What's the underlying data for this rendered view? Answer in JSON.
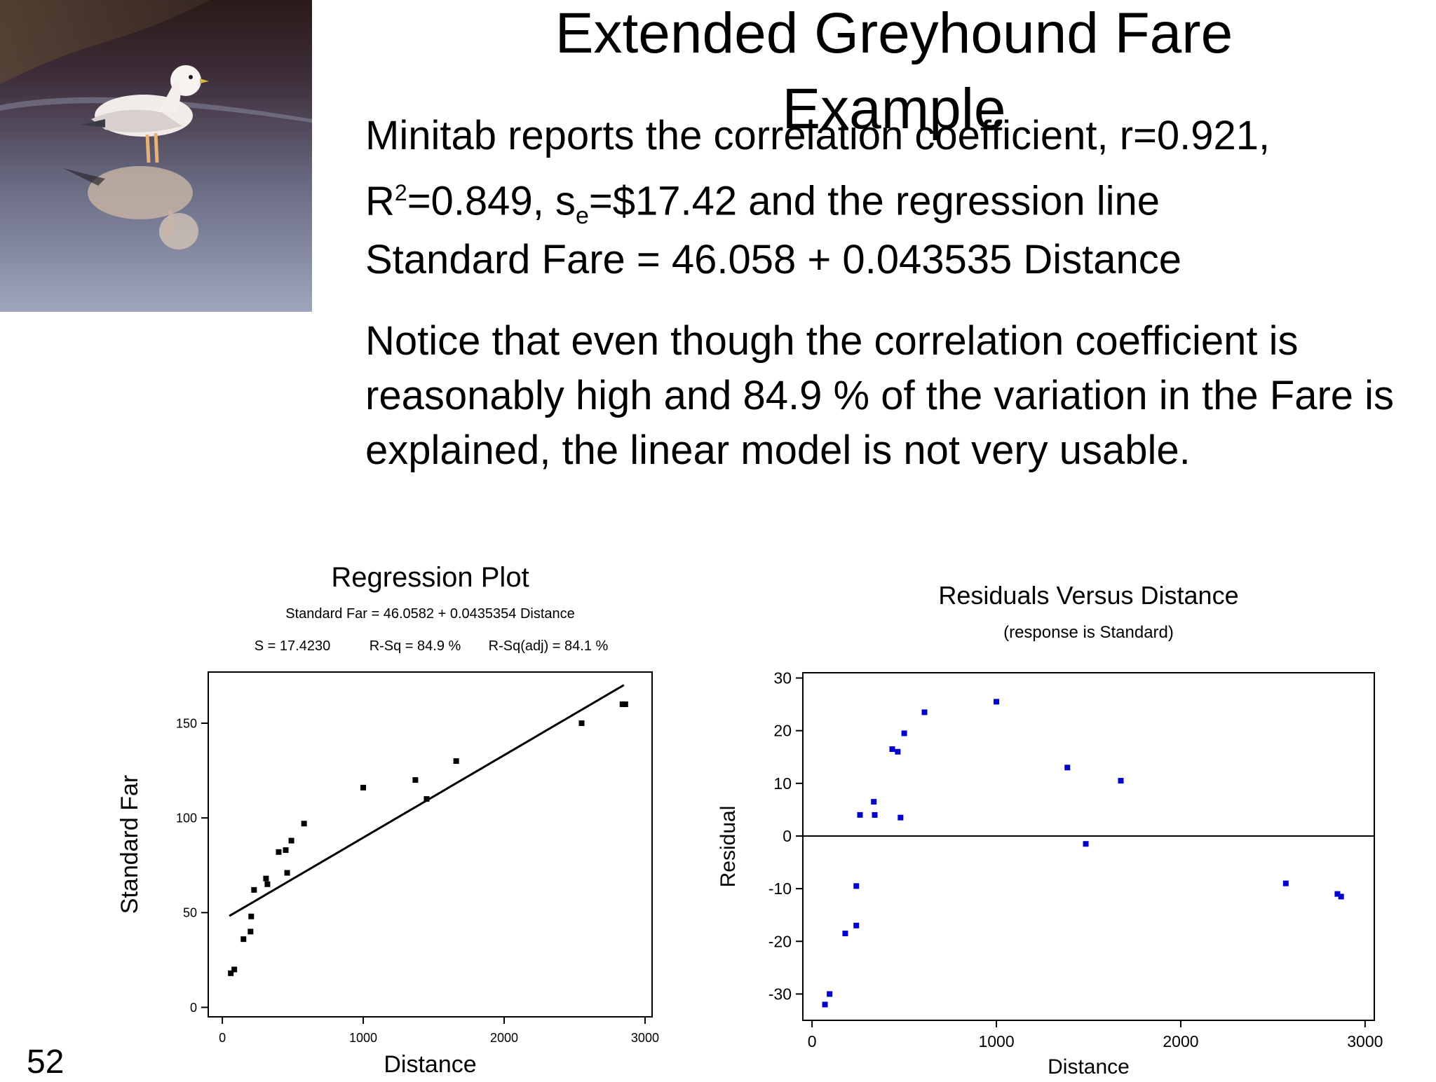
{
  "slide": {
    "title": "Extended Greyhound Fare Example",
    "line1": "Minitab reports the correlation coefficient, r=0.921,",
    "line2": {
      "r": "R",
      "r_sup": "2",
      "r_val": "=0.849, s",
      "s_sub": "e",
      "rest": "=$17.42 and the regression line"
    },
    "line3": "Standard Fare = 46.058 +  0.043535 Distance",
    "paragraph": "Notice that even though the correlation coefficient is reasonably high and 84.9 % of the variation in the Fare is explained, the linear model is not very usable.",
    "slide_number": "52"
  },
  "chart_data": [
    {
      "type": "scatter",
      "title": "Regression Plot",
      "subtitle": "Standard Far = 46.0582 + 0.0435354 Distance",
      "stats": [
        "S = 17.4230",
        "R-Sq = 84.9 %",
        "R-Sq(adj) = 84.1 %"
      ],
      "xlabel": "Distance",
      "ylabel": "Standard Far",
      "xlim": [
        -100,
        3050
      ],
      "ylim": [
        -5,
        177
      ],
      "xticks": [
        0,
        1000,
        2000,
        3000
      ],
      "yticks": [
        0,
        50,
        100,
        150
      ],
      "fit_line": {
        "intercept": 46.0582,
        "slope": 0.0435354,
        "x_range": [
          50,
          2850
        ]
      },
      "point_color": "#000000",
      "points": [
        {
          "x": 60,
          "y": 18
        },
        {
          "x": 85,
          "y": 20
        },
        {
          "x": 150,
          "y": 36
        },
        {
          "x": 200,
          "y": 40
        },
        {
          "x": 205,
          "y": 48
        },
        {
          "x": 225,
          "y": 62
        },
        {
          "x": 310,
          "y": 68
        },
        {
          "x": 320,
          "y": 65
        },
        {
          "x": 400,
          "y": 82
        },
        {
          "x": 450,
          "y": 83
        },
        {
          "x": 460,
          "y": 71
        },
        {
          "x": 490,
          "y": 88
        },
        {
          "x": 580,
          "y": 97
        },
        {
          "x": 1000,
          "y": 116
        },
        {
          "x": 1370,
          "y": 120
        },
        {
          "x": 1450,
          "y": 110
        },
        {
          "x": 1660,
          "y": 130
        },
        {
          "x": 2550,
          "y": 150
        },
        {
          "x": 2840,
          "y": 160
        },
        {
          "x": 2860,
          "y": 160
        }
      ]
    },
    {
      "type": "scatter",
      "title": "Residuals Versus Distance",
      "subtitle": "(response is Standard)",
      "xlabel": "Distance",
      "ylabel": "Residual",
      "xlim": [
        -50,
        3050
      ],
      "ylim": [
        -35,
        31
      ],
      "xticks": [
        0,
        1000,
        2000,
        3000
      ],
      "yticks": [
        -30,
        -20,
        -10,
        0,
        10,
        20,
        30
      ],
      "zero_line": true,
      "point_color": "#0000cc",
      "points": [
        {
          "x": 70,
          "y": -32
        },
        {
          "x": 95,
          "y": -30
        },
        {
          "x": 180,
          "y": -18.5
        },
        {
          "x": 240,
          "y": -17
        },
        {
          "x": 240,
          "y": -9.5
        },
        {
          "x": 260,
          "y": 4
        },
        {
          "x": 335,
          "y": 6.5
        },
        {
          "x": 340,
          "y": 4
        },
        {
          "x": 435,
          "y": 16.5
        },
        {
          "x": 465,
          "y": 16
        },
        {
          "x": 480,
          "y": 3.5
        },
        {
          "x": 500,
          "y": 19.5
        },
        {
          "x": 610,
          "y": 23.5
        },
        {
          "x": 1000,
          "y": 25.5
        },
        {
          "x": 1385,
          "y": 13
        },
        {
          "x": 1485,
          "y": -1.5
        },
        {
          "x": 1675,
          "y": 10.5
        },
        {
          "x": 2570,
          "y": -9
        },
        {
          "x": 2850,
          "y": -11
        },
        {
          "x": 2870,
          "y": -11.5
        }
      ]
    }
  ]
}
